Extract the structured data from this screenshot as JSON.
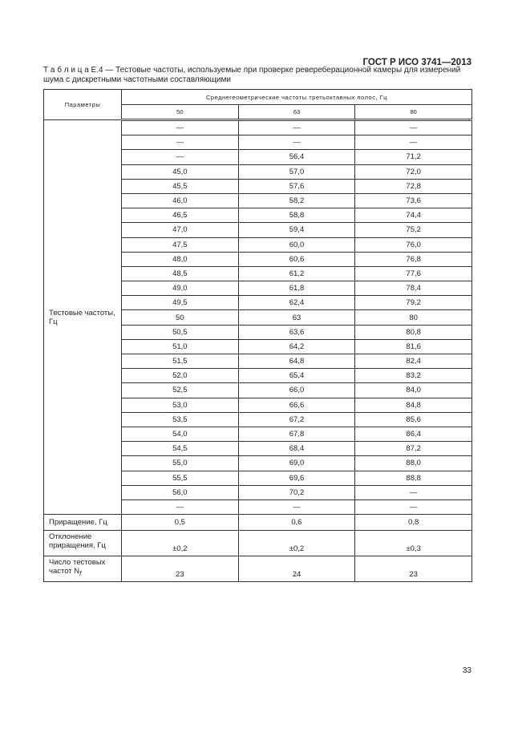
{
  "header": "ГОСТ Р ИСО 3741—2013",
  "caption": "Т а б л и ц а  Е.4 — Тестовые частоты, используемые при проверке ревереберационной камеры для измерений шума с дискретными частотными составляющими",
  "table": {
    "param_header": "Параметры",
    "group_header": "Среднегеометрические частоты третьоктавных полос, Гц",
    "columns": [
      "50",
      "63",
      "80"
    ],
    "test_freq_label": "Тестовые частоты, Гц",
    "rows": [
      [
        "—",
        "—",
        "—"
      ],
      [
        "—",
        "—",
        "—"
      ],
      [
        "—",
        "56,4",
        "71,2"
      ],
      [
        "45,0",
        "57,0",
        "72,0"
      ],
      [
        "45,5",
        "57,6",
        "72,8"
      ],
      [
        "46,0",
        "58,2",
        "73,6"
      ],
      [
        "46,5",
        "58,8",
        "74,4"
      ],
      [
        "47,0",
        "59,4",
        "75,2"
      ],
      [
        "47,5",
        "60,0",
        "76,0"
      ],
      [
        "48,0",
        "60,6",
        "76,8"
      ],
      [
        "48,5",
        "61,2",
        "77,6"
      ],
      [
        "49,0",
        "61,8",
        "78,4"
      ],
      [
        "49,5",
        "62,4",
        "79,2"
      ],
      [
        "50",
        "63",
        "80"
      ],
      [
        "50,5",
        "63,6",
        "80,8"
      ],
      [
        "51,0",
        "64,2",
        "81,6"
      ],
      [
        "51,5",
        "64,8",
        "82,4"
      ],
      [
        "52,0",
        "65,4",
        "83,2"
      ],
      [
        "52,5",
        "66,0",
        "84,0"
      ],
      [
        "53,0",
        "66,6",
        "84,8"
      ],
      [
        "53,5",
        "67,2",
        "85,6"
      ],
      [
        "54,0",
        "67,8",
        "86,4"
      ],
      [
        "54,5",
        "68,4",
        "87,2"
      ],
      [
        "55,0",
        "69,0",
        "88,0"
      ],
      [
        "55,5",
        "69,6",
        "88,8"
      ],
      [
        "56,0",
        "70,2",
        "—"
      ],
      [
        "—",
        "—",
        "—"
      ]
    ],
    "increment": {
      "label": "Приращение, Гц",
      "values": [
        "0,5",
        "0,6",
        "0,8"
      ]
    },
    "deviation": {
      "label": "Отклонение приращения, Гц",
      "values": [
        "±0,2",
        "±0,2",
        "±0,3"
      ]
    },
    "count": {
      "label": "Число тестовых частот N",
      "label_sub": "f",
      "values": [
        "23",
        "24",
        "23"
      ]
    }
  },
  "page_number": "33"
}
